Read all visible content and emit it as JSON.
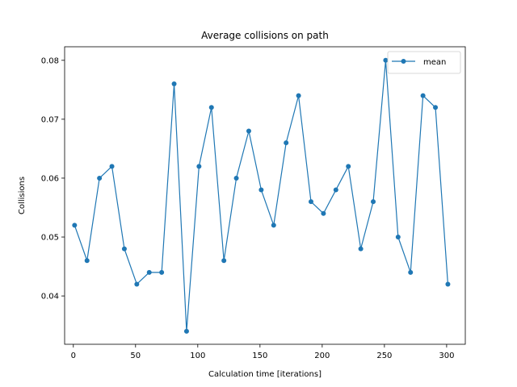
{
  "chart_data": {
    "type": "line",
    "title": "Average collisions on path",
    "xlabel": "Calculation time [iterations]",
    "ylabel": "Collisions",
    "xlim": [
      -7,
      315
    ],
    "ylim": [
      0.0318,
      0.0823
    ],
    "xticks": [
      0,
      50,
      100,
      150,
      200,
      250,
      300
    ],
    "xtick_labels": [
      "0",
      "50",
      "100",
      "150",
      "200",
      "250",
      "300"
    ],
    "yticks": [
      0.04,
      0.05,
      0.06,
      0.07,
      0.08
    ],
    "ytick_labels": [
      "0.04",
      "0.05",
      "0.06",
      "0.07",
      "0.08"
    ],
    "grid": false,
    "legend_position": "top-right",
    "series": [
      {
        "name": "mean",
        "color": "#1f77b4",
        "marker": "circle",
        "x": [
          1,
          11,
          21,
          31,
          41,
          51,
          61,
          71,
          81,
          91,
          101,
          111,
          121,
          131,
          141,
          151,
          161,
          171,
          181,
          191,
          201,
          211,
          221,
          231,
          241,
          251,
          261,
          271,
          281,
          291,
          301
        ],
        "y": [
          0.052,
          0.046,
          0.06,
          0.062,
          0.048,
          0.042,
          0.044,
          0.044,
          0.076,
          0.034,
          0.062,
          0.072,
          0.046,
          0.06,
          0.068,
          0.058,
          0.052,
          0.066,
          0.074,
          0.056,
          0.054,
          0.058,
          0.062,
          0.048,
          0.056,
          0.08,
          0.05,
          0.044,
          0.074,
          0.072,
          0.042
        ]
      }
    ]
  }
}
